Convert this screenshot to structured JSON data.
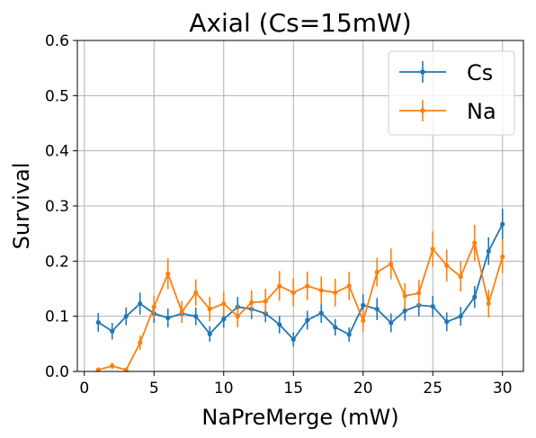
{
  "chart_data": {
    "type": "line",
    "title": "Axial (Cs=15mW)",
    "xlabel": "NaPreMerge (mW)",
    "ylabel": "Survival",
    "xlim": [
      -0.5,
      31.5
    ],
    "ylim": [
      0,
      0.6
    ],
    "xticks": [
      0,
      5,
      10,
      15,
      20,
      25,
      30
    ],
    "yticks": [
      0.0,
      0.1,
      0.2,
      0.3,
      0.4,
      0.5,
      0.6
    ],
    "xtick_labels": [
      "0",
      "5",
      "10",
      "15",
      "20",
      "25",
      "30"
    ],
    "ytick_labels": [
      "0.0",
      "0.1",
      "0.2",
      "0.3",
      "0.4",
      "0.5",
      "0.6"
    ],
    "grid": true,
    "legend_position": "top-right",
    "x": [
      1,
      2,
      3,
      4,
      5,
      6,
      7,
      8,
      9,
      10,
      11,
      12,
      13,
      14,
      15,
      16,
      17,
      18,
      19,
      20,
      21,
      22,
      23,
      24,
      25,
      26,
      27,
      28,
      29,
      30
    ],
    "series": [
      {
        "name": "Cs",
        "color": "#1f77b4",
        "values": [
          0.089,
          0.073,
          0.1,
          0.123,
          0.105,
          0.097,
          0.105,
          0.1,
          0.068,
          0.095,
          0.117,
          0.113,
          0.105,
          0.085,
          0.058,
          0.093,
          0.106,
          0.08,
          0.067,
          0.12,
          0.113,
          0.088,
          0.11,
          0.12,
          0.118,
          0.09,
          0.1,
          0.135,
          0.218,
          0.267
        ],
        "errors": [
          0.017,
          0.015,
          0.016,
          0.02,
          0.017,
          0.017,
          0.017,
          0.016,
          0.014,
          0.016,
          0.018,
          0.018,
          0.016,
          0.016,
          0.013,
          0.017,
          0.018,
          0.015,
          0.013,
          0.02,
          0.02,
          0.017,
          0.018,
          0.02,
          0.019,
          0.017,
          0.017,
          0.02,
          0.025,
          0.028
        ]
      },
      {
        "name": "Na",
        "color": "#ff7f0e",
        "values": [
          0.003,
          0.01,
          0.003,
          0.052,
          0.117,
          0.177,
          0.108,
          0.143,
          0.113,
          0.123,
          0.1,
          0.125,
          0.127,
          0.155,
          0.143,
          0.155,
          0.147,
          0.143,
          0.155,
          0.092,
          0.18,
          0.195,
          0.137,
          0.142,
          0.222,
          0.192,
          0.172,
          0.233,
          0.123,
          0.208
        ],
        "errors": [
          0.004,
          0.006,
          0.004,
          0.013,
          0.02,
          0.028,
          0.02,
          0.024,
          0.022,
          0.022,
          0.02,
          0.022,
          0.023,
          0.027,
          0.025,
          0.026,
          0.025,
          0.025,
          0.026,
          0.02,
          0.026,
          0.028,
          0.023,
          0.024,
          0.032,
          0.029,
          0.027,
          0.033,
          0.025,
          0.03
        ]
      }
    ]
  }
}
